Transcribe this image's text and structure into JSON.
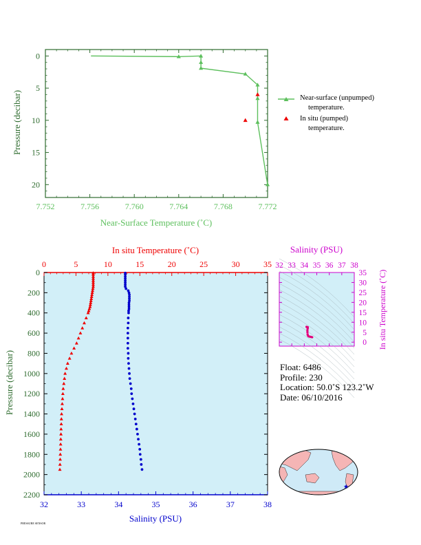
{
  "colors": {
    "near_surface": "#5cbf5c",
    "temperature": "#ee0000",
    "salinity": "#0000cc",
    "salinity_axis": "#cc00cc",
    "axis_green": "#2e6b2e",
    "panel_bg": "#d2eff8",
    "land": "#f5b5b5",
    "ocean": "#cfeaf7",
    "float_marker": "#0000cc"
  },
  "info": {
    "float": "Float:  6486",
    "profile": "Profile:  230",
    "location": "Location:  50.0˚S  123.2˚W",
    "date": "Date:  06/10/2016"
  },
  "legend": {
    "near_surface_line1": "Near-surface (unpumped)",
    "near_surface_line2": "temperature.",
    "in_situ_line1": "In situ (pumped)",
    "in_situ_line2": "temperature."
  },
  "footer": "PRESSURE SENSOR",
  "chart_data": [
    {
      "type": "line",
      "xlabel": "Near-Surface Temperature (˚C)",
      "ylabel": "Pressure (decibar)",
      "xlim": [
        7.752,
        7.772
      ],
      "ylim": [
        22,
        -1
      ],
      "x_ticks": [
        "7.752",
        "7.756",
        "7.760",
        "7.764",
        "7.768",
        "7.772"
      ],
      "x_tick_values": [
        7.752,
        7.756,
        7.76,
        7.764,
        7.768,
        7.772
      ],
      "y_ticks": [
        "0",
        "5",
        "10",
        "15",
        "20"
      ],
      "y_tick_values": [
        0,
        5,
        10,
        15,
        20
      ],
      "series": [
        {
          "name": "Near-surface (unpumped) temperature.",
          "marker": "triangle",
          "x": [
            7.7561,
            7.764,
            7.766,
            7.766,
            7.766,
            7.77,
            7.7711,
            7.7711,
            7.7711,
            7.772
          ],
          "y": [
            0.0,
            0.1,
            0.0,
            1.0,
            1.9,
            2.8,
            4.5,
            6.6,
            10.3,
            20.0
          ]
        },
        {
          "name": "In situ (pumped) temperature.",
          "marker": "triangle",
          "x": [
            7.77,
            7.7711
          ],
          "y": [
            10.0,
            6.0
          ]
        }
      ]
    },
    {
      "type": "scatter",
      "title": "In situ Temperature (˚C)",
      "xlabel": "Salinity (PSU)",
      "ylabel": "Pressure (decibar)",
      "temperature_lim": [
        0,
        35
      ],
      "salinity_lim": [
        32,
        38
      ],
      "ylim": [
        2200,
        0
      ],
      "temperature_ticks": [
        "0",
        "5",
        "10",
        "15",
        "20",
        "25",
        "30",
        "35"
      ],
      "temperature_tick_values": [
        0,
        5,
        10,
        15,
        20,
        25,
        30,
        35
      ],
      "salinity_ticks": [
        "32",
        "33",
        "34",
        "35",
        "36",
        "37",
        "38"
      ],
      "salinity_tick_values": [
        32,
        33,
        34,
        35,
        36,
        37,
        38
      ],
      "pressure_ticks": [
        "0",
        "200",
        "400",
        "600",
        "800",
        "1000",
        "1200",
        "1400",
        "1600",
        "1800",
        "2000",
        "2200"
      ],
      "pressure_tick_values": [
        0,
        200,
        400,
        600,
        800,
        1000,
        1200,
        1400,
        1600,
        1800,
        2000,
        2200
      ],
      "series": [
        {
          "name": "Temperature",
          "marker": "triangle",
          "pressure": [
            5,
            20,
            40,
            60,
            80,
            100,
            120,
            140,
            160,
            180,
            200,
            220,
            240,
            260,
            280,
            300,
            320,
            340,
            360,
            380,
            400,
            450,
            500,
            550,
            600,
            650,
            700,
            750,
            800,
            850,
            900,
            950,
            1000,
            1050,
            1100,
            1150,
            1200,
            1250,
            1300,
            1350,
            1400,
            1450,
            1500,
            1550,
            1600,
            1650,
            1700,
            1750,
            1800,
            1850,
            1900,
            1950
          ],
          "temperature": [
            7.7,
            7.7,
            7.7,
            7.7,
            7.7,
            7.7,
            7.7,
            7.7,
            7.65,
            7.6,
            7.55,
            7.5,
            7.45,
            7.4,
            7.35,
            7.3,
            7.25,
            7.2,
            7.1,
            7.0,
            6.9,
            6.6,
            6.3,
            6.0,
            5.7,
            5.4,
            5.1,
            4.7,
            4.3,
            4.0,
            3.7,
            3.5,
            3.3,
            3.2,
            3.1,
            3.0,
            2.95,
            2.9,
            2.85,
            2.8,
            2.75,
            2.72,
            2.7,
            2.67,
            2.65,
            2.62,
            2.6,
            2.58,
            2.55,
            2.53,
            2.5,
            2.48
          ]
        },
        {
          "name": "Salinity",
          "marker": "dot",
          "pressure": [
            5,
            20,
            40,
            60,
            80,
            100,
            120,
            140,
            160,
            180,
            200,
            220,
            240,
            260,
            280,
            300,
            320,
            340,
            360,
            380,
            400,
            450,
            500,
            550,
            600,
            650,
            700,
            750,
            800,
            850,
            900,
            950,
            1000,
            1050,
            1100,
            1150,
            1200,
            1250,
            1300,
            1350,
            1400,
            1450,
            1500,
            1550,
            1600,
            1650,
            1700,
            1750,
            1800,
            1850,
            1900,
            1950
          ],
          "salinity": [
            34.18,
            34.18,
            34.18,
            34.18,
            34.18,
            34.18,
            34.18,
            34.18,
            34.2,
            34.26,
            34.28,
            34.29,
            34.29,
            34.29,
            34.29,
            34.28,
            34.28,
            34.28,
            34.28,
            34.27,
            34.27,
            34.26,
            34.26,
            34.25,
            34.25,
            34.25,
            34.25,
            34.25,
            34.26,
            34.26,
            34.27,
            34.28,
            34.29,
            34.3,
            34.32,
            34.34,
            34.35,
            34.37,
            34.39,
            34.41,
            34.43,
            34.45,
            34.47,
            34.49,
            34.51,
            34.53,
            34.55,
            34.57,
            34.58,
            34.6,
            34.61,
            34.63
          ]
        }
      ]
    },
    {
      "type": "scatter",
      "title": "Salinity (PSU)",
      "ylabel": "In situ Temperature (˚C)",
      "xlim": [
        32,
        38
      ],
      "ylim": [
        -2,
        35
      ],
      "x_ticks": [
        "32",
        "33",
        "34",
        "35",
        "36",
        "37",
        "38"
      ],
      "x_tick_values": [
        32,
        33,
        34,
        35,
        36,
        37,
        38
      ],
      "y_ticks": [
        "0",
        "5",
        "10",
        "15",
        "20",
        "25",
        "30",
        "35"
      ],
      "y_tick_values": [
        0,
        5,
        10,
        15,
        20,
        25,
        30,
        35
      ],
      "series": [
        {
          "name": "T-S",
          "salinity": [
            34.18,
            34.2,
            34.28,
            34.28,
            34.27,
            34.25,
            34.25,
            34.27,
            34.32,
            34.39,
            34.47,
            34.55,
            34.63
          ],
          "temperature": [
            7.7,
            7.65,
            7.5,
            7.25,
            6.9,
            6.0,
            5.1,
            3.7,
            3.0,
            2.85,
            2.7,
            2.6,
            2.48
          ]
        }
      ]
    }
  ]
}
